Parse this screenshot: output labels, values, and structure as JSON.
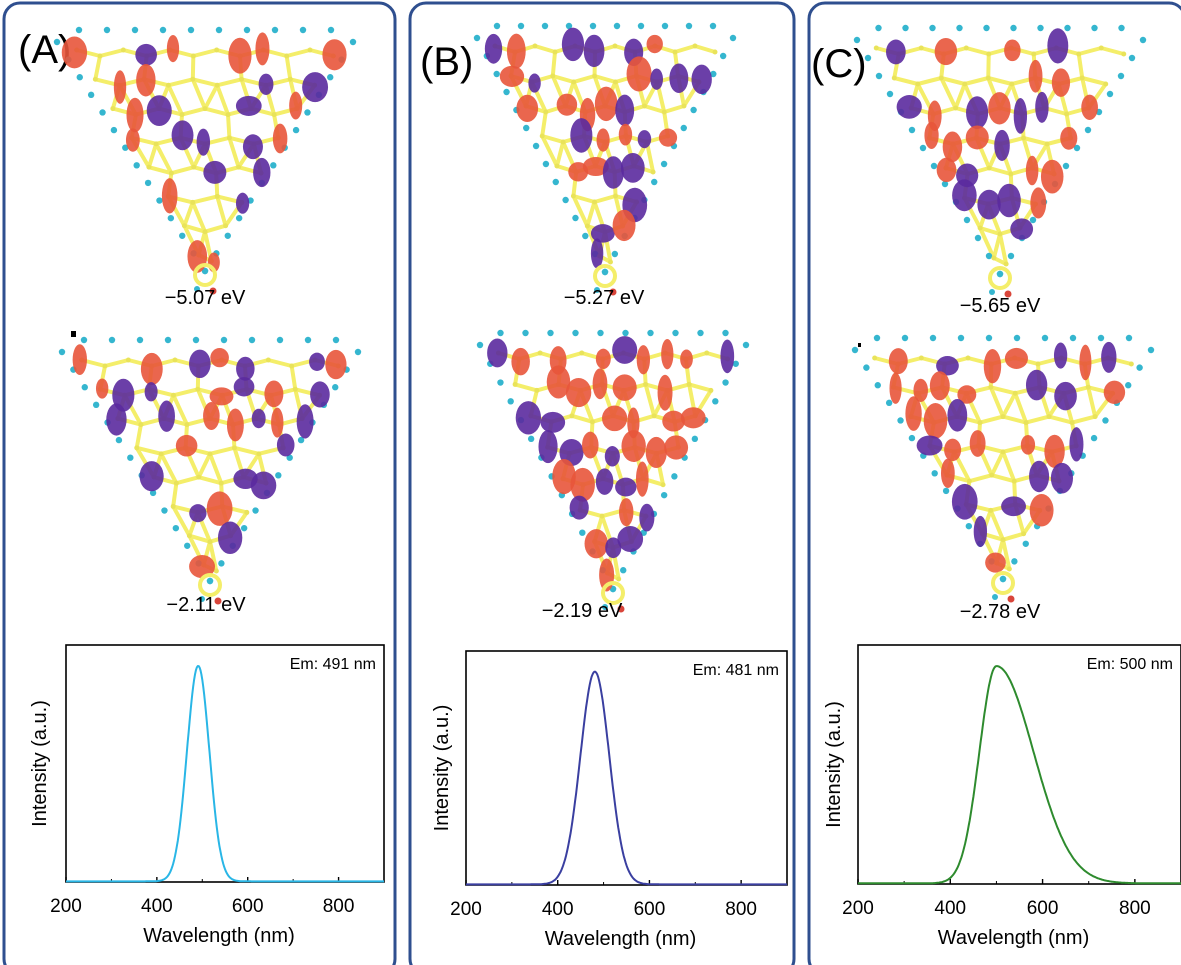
{
  "figure": {
    "panels": [
      {
        "label": "(A)",
        "homo_energy": "−5.07 eV",
        "lumo_energy": "−2.11 eV",
        "emission_label": "Em: 491 nm",
        "curve_color": "#29b6e6"
      },
      {
        "label": "(B)",
        "homo_energy": "−5.27 eV",
        "lumo_energy": "−2.19 eV",
        "emission_label": "Em: 481 nm",
        "curve_color": "#3a3fa0"
      },
      {
        "label": "(C)",
        "homo_energy": "−5.65 eV",
        "lumo_energy": "−2.78 eV",
        "emission_label": "Em: 500 nm",
        "curve_color": "#2e8b2e"
      }
    ],
    "colors": {
      "panel_border": "#2f4f8f",
      "orbital_red": "#e8553b",
      "orbital_purple": "#5b2a9e",
      "carbon_yellow": "#f4ee6a",
      "hydrogen_cyan": "#35b6cf",
      "oxygen_red": "#d9453a"
    }
  },
  "chart_data": [
    {
      "type": "line",
      "xlabel": "Wavelength (nm)",
      "ylabel": "Intensity (a.u.)",
      "xlim": [
        200,
        900
      ],
      "ylim": [
        0,
        1.1
      ],
      "xticks": [
        200,
        400,
        600,
        800
      ],
      "annotation": "Em: 491 nm",
      "series": [
        {
          "peak": 491,
          "fwhm": 58,
          "skew": 0,
          "color": "#29b6e6"
        }
      ]
    },
    {
      "type": "line",
      "xlabel": "Wavelength (nm)",
      "ylabel": "Intensity (a.u.)",
      "xlim": [
        200,
        900
      ],
      "ylim": [
        0,
        1.1
      ],
      "xticks": [
        200,
        400,
        600,
        800
      ],
      "annotation": "Em: 481 nm",
      "series": [
        {
          "peak": 481,
          "fwhm": 74,
          "skew": 0,
          "color": "#3a3fa0"
        }
      ]
    },
    {
      "type": "line",
      "xlabel": "Wavelength (nm)",
      "ylabel": "Intensity (a.u.)",
      "xlim": [
        200,
        900
      ],
      "ylim": [
        0,
        1.1
      ],
      "xticks": [
        200,
        400,
        600,
        800
      ],
      "annotation": "Em: 500 nm",
      "series": [
        {
          "peak": 500,
          "fwhm": 140,
          "skew": 1,
          "color": "#2e8b2e"
        }
      ]
    }
  ]
}
